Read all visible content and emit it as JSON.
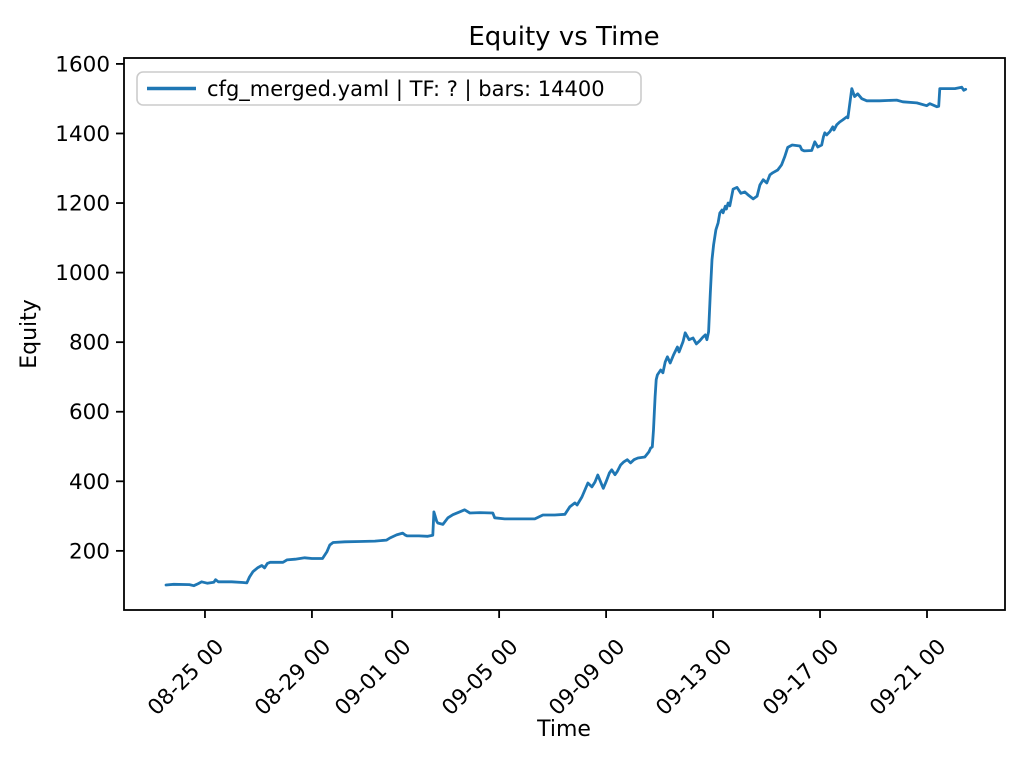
{
  "figure": {
    "background": "#ffffff",
    "spine_color": "#000000"
  },
  "chart_data": {
    "type": "line",
    "title": "Equity vs Time",
    "xlabel": "Time",
    "ylabel": "Equity",
    "grid": false,
    "legend_position": "upper left",
    "legend": [
      {
        "label": "cfg_merged.yaml | TF: ? | bars: 14400",
        "color": "#1f77b4"
      }
    ],
    "y_ticks": [
      200,
      400,
      600,
      800,
      1000,
      1200,
      1400,
      1600
    ],
    "x_ticks": [
      {
        "t": "08-25 00:00",
        "label": "08-25 00"
      },
      {
        "t": "08-29 00:00",
        "label": "08-29 00"
      },
      {
        "t": "09-01 00:00",
        "label": "09-01 00"
      },
      {
        "t": "09-05 00:00",
        "label": "09-05 00"
      },
      {
        "t": "09-09 00:00",
        "label": "09-09 00"
      },
      {
        "t": "09-13 00:00",
        "label": "09-13 00"
      },
      {
        "t": "09-17 00:00",
        "label": "09-17 00"
      },
      {
        "t": "09-21 00:00",
        "label": "09-21 00"
      }
    ],
    "xlim": [
      "08-21 23:20",
      "09-23 22:00"
    ],
    "ylim": [
      30,
      1617
    ],
    "series": [
      {
        "name": "cfg_merged.yaml | TF: ? | bars: 14400",
        "color": "#1f77b4",
        "points": [
          [
            "08-23 13:00",
            102
          ],
          [
            "08-23 20:00",
            104
          ],
          [
            "08-24 10:00",
            103
          ],
          [
            "08-24 14:00",
            100
          ],
          [
            "08-24 18:00",
            106
          ],
          [
            "08-24 21:00",
            111
          ],
          [
            "08-25 02:00",
            107
          ],
          [
            "08-25 08:00",
            110
          ],
          [
            "08-25 09:30",
            117
          ],
          [
            "08-25 12:00",
            111
          ],
          [
            "08-26 00:00",
            111
          ],
          [
            "08-26 10:00",
            109
          ],
          [
            "08-26 13:30",
            108
          ],
          [
            "08-26 16:00",
            125
          ],
          [
            "08-26 19:00",
            140
          ],
          [
            "08-26 23:30",
            152
          ],
          [
            "08-27 03:00",
            158
          ],
          [
            "08-27 05:30",
            151
          ],
          [
            "08-27 08:00",
            164
          ],
          [
            "08-27 10:30",
            167
          ],
          [
            "08-27 22:00",
            167
          ],
          [
            "08-28 01:30",
            174
          ],
          [
            "08-28 09:00",
            176
          ],
          [
            "08-28 17:30",
            180
          ],
          [
            "08-29 00:00",
            178
          ],
          [
            "08-29 09:30",
            178
          ],
          [
            "08-29 13:30",
            198
          ],
          [
            "08-29 16:00",
            217
          ],
          [
            "08-29 19:00",
            224
          ],
          [
            "08-30 05:30",
            226
          ],
          [
            "08-30 19:00",
            227
          ],
          [
            "08-31 08:30",
            228
          ],
          [
            "08-31 19:00",
            231
          ],
          [
            "08-31 22:00",
            237
          ],
          [
            "09-01 04:00",
            246
          ],
          [
            "09-01 09:30",
            251
          ],
          [
            "09-01 12:00",
            245
          ],
          [
            "09-01 13:30",
            243
          ],
          [
            "09-02 00:00",
            243
          ],
          [
            "09-02 08:00",
            242
          ],
          [
            "09-02 12:30",
            245
          ],
          [
            "09-02 13:30",
            312
          ],
          [
            "09-02 16:00",
            285
          ],
          [
            "09-02 17:00",
            280
          ],
          [
            "09-02 21:30",
            276
          ],
          [
            "09-03 02:00",
            295
          ],
          [
            "09-03 06:30",
            304
          ],
          [
            "09-03 12:30",
            312
          ],
          [
            "09-03 17:00",
            318
          ],
          [
            "09-03 21:45",
            309
          ],
          [
            "09-04 06:45",
            310
          ],
          [
            "09-04 18:20",
            309
          ],
          [
            "09-04 20:00",
            295
          ],
          [
            "09-05 05:00",
            292
          ],
          [
            "09-06 08:00",
            292
          ],
          [
            "09-06 15:15",
            303
          ],
          [
            "09-07 02:00",
            303
          ],
          [
            "09-07 11:00",
            305
          ],
          [
            "09-07 15:30",
            327
          ],
          [
            "09-07 20:00",
            338
          ],
          [
            "09-07 22:00",
            332
          ],
          [
            "09-08 02:15",
            355
          ],
          [
            "09-08 05:00",
            375
          ],
          [
            "09-08 07:40",
            395
          ],
          [
            "09-08 11:15",
            384
          ],
          [
            "09-08 14:00",
            398
          ],
          [
            "09-08 16:35",
            418
          ],
          [
            "09-08 20:10",
            390
          ],
          [
            "09-08 21:30",
            380
          ],
          [
            "09-09 00:00",
            399
          ],
          [
            "09-09 03:00",
            424
          ],
          [
            "09-09 05:00",
            433
          ],
          [
            "09-09 08:00",
            419
          ],
          [
            "09-09 10:00",
            428
          ],
          [
            "09-09 13:00",
            447
          ],
          [
            "09-09 16:00",
            456
          ],
          [
            "09-09 19:00",
            462
          ],
          [
            "09-09 22:00",
            453
          ],
          [
            "09-10 01:00",
            462
          ],
          [
            "09-10 04:30",
            467
          ],
          [
            "09-10 10:45",
            470
          ],
          [
            "09-10 14:30",
            485
          ],
          [
            "09-10 16:00",
            496
          ],
          [
            "09-10 17:30",
            499
          ],
          [
            "09-10 18:30",
            548
          ],
          [
            "09-10 19:15",
            596
          ],
          [
            "09-10 20:00",
            643
          ],
          [
            "09-10 21:00",
            692
          ],
          [
            "09-10 22:00",
            706
          ],
          [
            "09-11 01:00",
            720
          ],
          [
            "09-11 03:00",
            712
          ],
          [
            "09-11 05:00",
            743
          ],
          [
            "09-11 07:00",
            758
          ],
          [
            "09-11 09:30",
            740
          ],
          [
            "09-11 12:30",
            763
          ],
          [
            "09-11 16:00",
            786
          ],
          [
            "09-11 17:30",
            772
          ],
          [
            "09-11 21:00",
            801
          ],
          [
            "09-11 23:00",
            827
          ],
          [
            "09-12 02:30",
            807
          ],
          [
            "09-12 06:00",
            812
          ],
          [
            "09-12 09:00",
            795
          ],
          [
            "09-12 12:00",
            804
          ],
          [
            "09-12 15:00",
            815
          ],
          [
            "09-12 17:00",
            821
          ],
          [
            "09-12 18:30",
            807
          ],
          [
            "09-12 20:00",
            830
          ],
          [
            "09-12 21:30",
            940
          ],
          [
            "09-12 23:00",
            1037
          ],
          [
            "09-13 00:30",
            1080
          ],
          [
            "09-13 02:30",
            1123
          ],
          [
            "09-13 04:30",
            1143
          ],
          [
            "09-13 06:00",
            1171
          ],
          [
            "09-13 08:00",
            1180
          ],
          [
            "09-13 09:00",
            1172
          ],
          [
            "09-13 11:00",
            1191
          ],
          [
            "09-13 12:00",
            1183
          ],
          [
            "09-13 13:30",
            1200
          ],
          [
            "09-13 15:00",
            1192
          ],
          [
            "09-13 18:00",
            1240
          ],
          [
            "09-13 21:30",
            1245
          ],
          [
            "09-14 01:00",
            1228
          ],
          [
            "09-14 04:30",
            1232
          ],
          [
            "09-14 08:00",
            1222
          ],
          [
            "09-14 12:00",
            1212
          ],
          [
            "09-14 15:30",
            1220
          ],
          [
            "09-14 18:00",
            1252
          ],
          [
            "09-14 21:00",
            1267
          ],
          [
            "09-15 00:15",
            1258
          ],
          [
            "09-15 03:00",
            1281
          ],
          [
            "09-15 05:30",
            1287
          ],
          [
            "09-15 10:00",
            1295
          ],
          [
            "09-15 13:30",
            1310
          ],
          [
            "09-15 16:20",
            1333
          ],
          [
            "09-15 19:00",
            1360
          ],
          [
            "09-15 23:00",
            1367
          ],
          [
            "09-16 06:00",
            1364
          ],
          [
            "09-16 07:40",
            1353
          ],
          [
            "09-16 10:00",
            1350
          ],
          [
            "09-16 16:30",
            1351
          ],
          [
            "09-16 19:20",
            1376
          ],
          [
            "09-16 22:00",
            1361
          ],
          [
            "09-17 01:30",
            1367
          ],
          [
            "09-17 03:00",
            1390
          ],
          [
            "09-17 04:15",
            1402
          ],
          [
            "09-17 06:00",
            1396
          ],
          [
            "09-17 08:45",
            1405
          ],
          [
            "09-17 11:25",
            1419
          ],
          [
            "09-17 12:30",
            1410
          ],
          [
            "09-17 15:00",
            1425
          ],
          [
            "09-17 17:40",
            1433
          ],
          [
            "09-17 20:25",
            1439
          ],
          [
            "09-18 00:00",
            1448
          ],
          [
            "09-18 01:00",
            1445
          ],
          [
            "09-18 02:30",
            1482
          ],
          [
            "09-18 04:30",
            1529
          ],
          [
            "09-18 07:00",
            1506
          ],
          [
            "09-18 09:50",
            1514
          ],
          [
            "09-18 13:30",
            1500
          ],
          [
            "09-18 18:00",
            1494
          ],
          [
            "09-19 05:30",
            1494
          ],
          [
            "09-19 20:50",
            1496
          ],
          [
            "09-20 02:15",
            1491
          ],
          [
            "09-20 14:50",
            1488
          ],
          [
            "09-20 23:45",
            1480
          ],
          [
            "09-21 02:30",
            1486
          ],
          [
            "09-21 08:45",
            1477
          ],
          [
            "09-21 10:30",
            1478
          ],
          [
            "09-21 11:30",
            1529
          ],
          [
            "09-22 01:00",
            1529
          ],
          [
            "09-22 07:10",
            1533
          ],
          [
            "09-22 09:00",
            1524
          ],
          [
            "09-22 10:45",
            1527
          ]
        ]
      }
    ]
  }
}
